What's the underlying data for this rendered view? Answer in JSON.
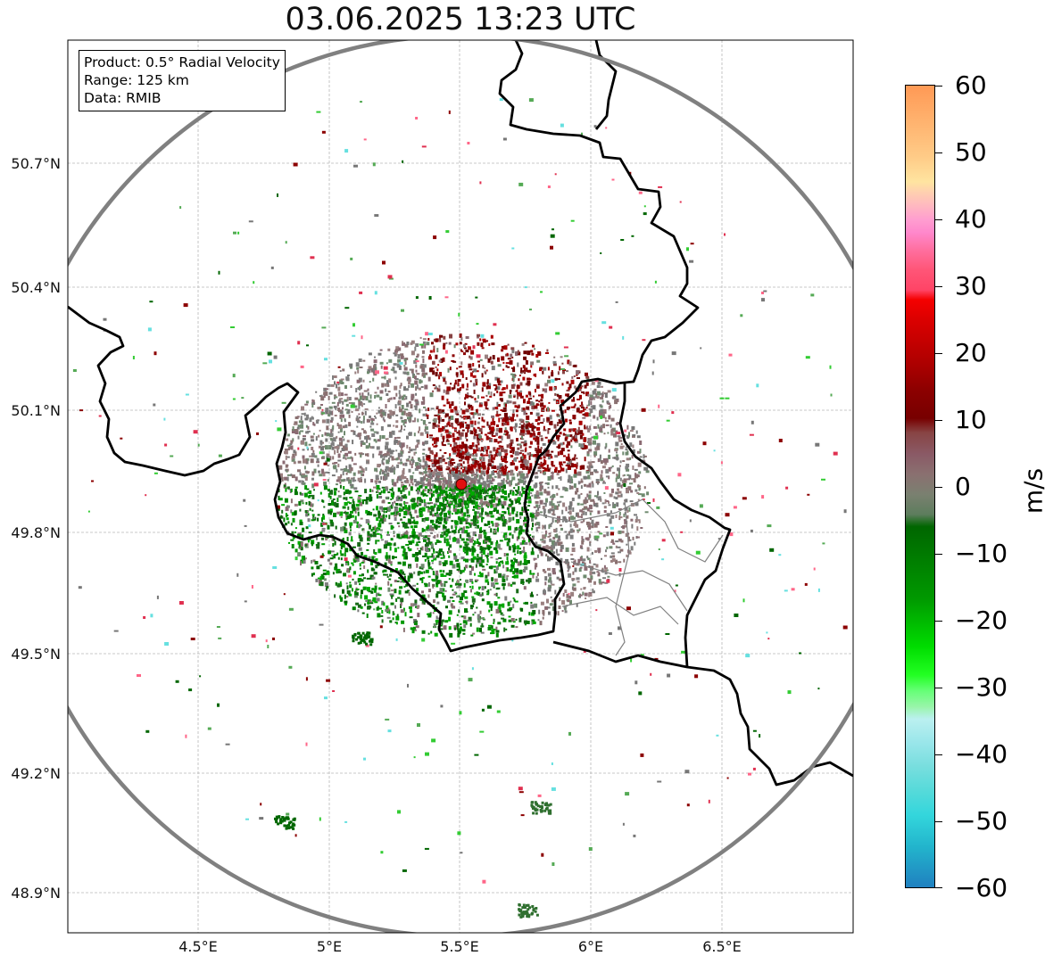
{
  "title": "03.06.2025 13:23 UTC",
  "infobox": {
    "product": "Product: 0.5° Radial Velocity",
    "range": "Range: 125 km",
    "data": "Data: RMIB"
  },
  "lat_labels": [
    "50.7°N",
    "50.4°N",
    "50.1°N",
    "49.8°N",
    "49.5°N",
    "49.2°N",
    "48.9°N"
  ],
  "lon_labels": [
    "4.5°E",
    "5°E",
    "5.5°E",
    "6°E",
    "6.5°E"
  ],
  "colorbar": {
    "unit": "m/s",
    "min": -60,
    "max": 60,
    "tick_labels": [
      "60",
      "50",
      "40",
      "30",
      "20",
      "10",
      "0",
      "−10",
      "−20",
      "−30",
      "−40",
      "−50",
      "−60"
    ]
  },
  "colors": {
    "range_ring": "#808080",
    "border": "#000000",
    "grid": "#b0b0b0",
    "radar_site": "#e01010"
  },
  "radar_site": {
    "lon": 5.505,
    "lat": 49.914
  }
}
